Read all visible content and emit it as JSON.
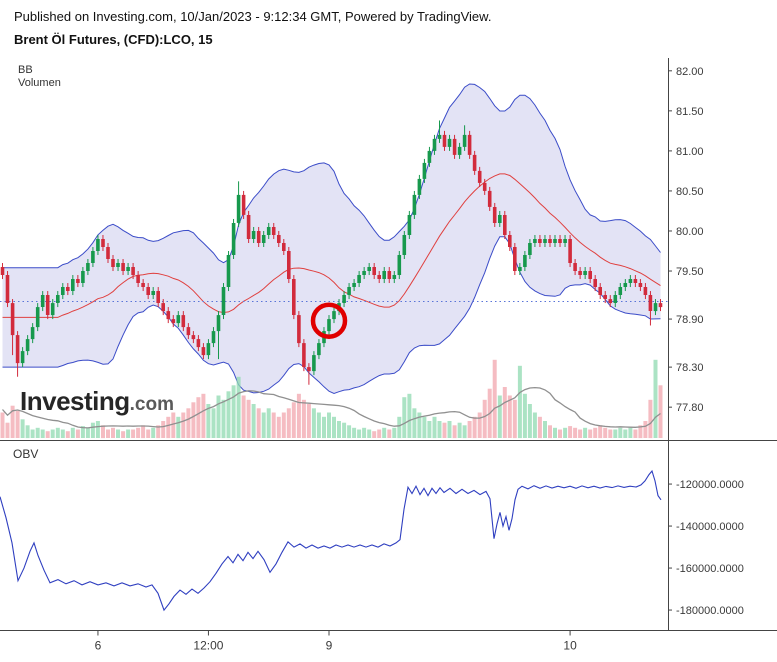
{
  "header": {
    "published_line": "Published on Investing.com, 10/Jan/2023 - 9:12:34 GMT, Powered by TradingView.",
    "instrument_line": "Brent Öl Futures, (CFD):LCO, 15"
  },
  "main_panel": {
    "bb_label": "BB",
    "volume_label": "Volumen"
  },
  "obv_panel": {
    "label": "OBV"
  },
  "logo": {
    "text_main": "Investing",
    "text_suffix": ".com"
  },
  "chart_data": [
    {
      "type": "candlestick",
      "title": "Brent Öl Futures, (CFD):LCO, 15",
      "interval": "15",
      "indicators": [
        "BB",
        "Volumen"
      ],
      "ylim": [
        77.39,
        82.16
      ],
      "y_axis": {
        "labels": [
          "82.00",
          "81.50",
          "81.00",
          "80.50",
          "80.00",
          "79.50",
          "78.90",
          "78.30",
          "77.80"
        ],
        "values": [
          82.0,
          81.5,
          81.0,
          80.5,
          80.0,
          79.5,
          78.9,
          78.3,
          77.8
        ]
      },
      "x_axis_labels": [
        {
          "label": "6",
          "index": 19
        },
        {
          "label": "12:00",
          "index": 41
        },
        {
          "label": "9",
          "index": 65
        },
        {
          "label": "10",
          "index": 113
        }
      ],
      "first_open": 79.55,
      "closes": [
        79.45,
        79.1,
        78.7,
        78.35,
        78.5,
        78.65,
        78.8,
        79.05,
        79.2,
        78.95,
        79.1,
        79.2,
        79.3,
        79.25,
        79.4,
        79.35,
        79.5,
        79.6,
        79.75,
        79.9,
        79.8,
        79.65,
        79.55,
        79.6,
        79.5,
        79.55,
        79.45,
        79.35,
        79.3,
        79.2,
        79.25,
        79.1,
        79.0,
        78.9,
        78.85,
        78.95,
        78.8,
        78.7,
        78.65,
        78.55,
        78.45,
        78.6,
        78.75,
        78.95,
        79.3,
        79.7,
        80.1,
        80.45,
        80.2,
        79.9,
        80.0,
        79.85,
        79.95,
        80.05,
        79.95,
        79.85,
        79.75,
        79.4,
        78.95,
        78.6,
        78.3,
        78.25,
        78.45,
        78.6,
        78.75,
        78.9,
        79.0,
        79.1,
        79.2,
        79.3,
        79.35,
        79.45,
        79.5,
        79.55,
        79.45,
        79.4,
        79.5,
        79.4,
        79.45,
        79.7,
        79.95,
        80.2,
        80.45,
        80.65,
        80.85,
        81.0,
        81.15,
        81.2,
        81.05,
        81.15,
        80.95,
        81.05,
        81.2,
        80.95,
        80.75,
        80.6,
        80.5,
        80.3,
        80.1,
        80.2,
        79.95,
        79.8,
        79.5,
        79.55,
        79.7,
        79.85,
        79.9,
        79.85,
        79.9,
        79.85,
        79.9,
        79.85,
        79.9,
        79.6,
        79.5,
        79.45,
        79.5,
        79.4,
        79.3,
        79.2,
        79.15,
        79.1,
        79.2,
        79.3,
        79.35,
        79.4,
        79.35,
        79.3,
        79.2,
        79.0,
        79.1,
        79.05
      ],
      "volumes": [
        0.3,
        0.18,
        0.38,
        0.32,
        0.22,
        0.15,
        0.1,
        0.12,
        0.1,
        0.08,
        0.1,
        0.12,
        0.1,
        0.08,
        0.12,
        0.1,
        0.14,
        0.12,
        0.18,
        0.2,
        0.15,
        0.1,
        0.12,
        0.1,
        0.08,
        0.1,
        0.1,
        0.12,
        0.15,
        0.1,
        0.12,
        0.15,
        0.2,
        0.25,
        0.3,
        0.25,
        0.3,
        0.35,
        0.42,
        0.48,
        0.52,
        0.4,
        0.35,
        0.5,
        0.45,
        0.55,
        0.62,
        0.72,
        0.5,
        0.45,
        0.4,
        0.35,
        0.3,
        0.35,
        0.3,
        0.25,
        0.3,
        0.35,
        0.42,
        0.52,
        0.45,
        0.4,
        0.35,
        0.3,
        0.25,
        0.3,
        0.25,
        0.2,
        0.18,
        0.15,
        0.12,
        0.1,
        0.12,
        0.1,
        0.08,
        0.1,
        0.12,
        0.1,
        0.12,
        0.25,
        0.48,
        0.52,
        0.35,
        0.3,
        0.25,
        0.2,
        0.25,
        0.2,
        0.18,
        0.2,
        0.15,
        0.18,
        0.15,
        0.2,
        0.25,
        0.3,
        0.45,
        0.58,
        0.92,
        0.5,
        0.6,
        0.5,
        0.45,
        0.85,
        0.52,
        0.4,
        0.3,
        0.25,
        0.2,
        0.15,
        0.12,
        0.1,
        0.12,
        0.14,
        0.12,
        0.1,
        0.12,
        0.1,
        0.12,
        0.15,
        0.12,
        0.1,
        0.1,
        0.12,
        0.1,
        0.12,
        0.1,
        0.15,
        0.2,
        0.45,
        0.92,
        0.62
      ],
      "extremes": {
        "2": {
          "low": 78.45
        },
        "3": {
          "low": 78.18
        },
        "43": {
          "low": 78.4
        },
        "47": {
          "high": 80.62
        },
        "61": {
          "low": 78.08
        },
        "87": {
          "high": 81.38
        },
        "92": {
          "high": 81.32
        },
        "129": {
          "low": 78.82
        }
      },
      "bollinger": {
        "period": 20,
        "mult": 2
      },
      "last_price_line": 79.12,
      "annotation_circle": {
        "index": 65,
        "price": 78.88
      },
      "colors": {
        "candle_up": "#17994d",
        "candle_down": "#d22b3c",
        "bb_line": "#3b4cc8",
        "bb_mid": "#e0403f",
        "bb_fill": "#8f8fd9",
        "vol_up": "#8fd9b0",
        "vol_down": "#f2a6ad",
        "vol_ma": "#909090",
        "dotted": "#5a74d8",
        "circle": "#e00000"
      }
    },
    {
      "type": "line",
      "name": "OBV",
      "color": "#2f3fc0",
      "ylim": [
        -189500,
        -101400
      ],
      "y_axis": {
        "labels": [
          "-120000.0000",
          "-140000.0000",
          "-160000.0000",
          "-180000.0000"
        ],
        "values": [
          -120000,
          -140000,
          -160000,
          -180000
        ]
      },
      "points": [
        [
          0,
          -126000
        ],
        [
          6,
          -136000
        ],
        [
          12,
          -148000
        ],
        [
          18,
          -166000
        ],
        [
          24,
          -160000
        ],
        [
          30,
          -152000
        ],
        [
          34,
          -148000
        ],
        [
          38,
          -154000
        ],
        [
          44,
          -161000
        ],
        [
          50,
          -167000
        ],
        [
          58,
          -165500
        ],
        [
          66,
          -167500
        ],
        [
          74,
          -166000
        ],
        [
          82,
          -168000
        ],
        [
          90,
          -166500
        ],
        [
          98,
          -168000
        ],
        [
          106,
          -167000
        ],
        [
          114,
          -168500
        ],
        [
          122,
          -167000
        ],
        [
          130,
          -168500
        ],
        [
          138,
          -167500
        ],
        [
          146,
          -169000
        ],
        [
          152,
          -168000
        ],
        [
          158,
          -172000
        ],
        [
          164,
          -180000
        ],
        [
          169,
          -177000
        ],
        [
          174,
          -173500
        ],
        [
          180,
          -170500
        ],
        [
          186,
          -172500
        ],
        [
          192,
          -170000
        ],
        [
          198,
          -172000
        ],
        [
          204,
          -169500
        ],
        [
          210,
          -166500
        ],
        [
          216,
          -162500
        ],
        [
          222,
          -158000
        ],
        [
          228,
          -154500
        ],
        [
          233,
          -157500
        ],
        [
          238,
          -153500
        ],
        [
          243,
          -156500
        ],
        [
          248,
          -152500
        ],
        [
          253,
          -155500
        ],
        [
          258,
          -152000
        ],
        [
          264,
          -156000
        ],
        [
          270,
          -162000
        ],
        [
          276,
          -158000
        ],
        [
          282,
          -152500
        ],
        [
          288,
          -147500
        ],
        [
          294,
          -150000
        ],
        [
          300,
          -148500
        ],
        [
          306,
          -150500
        ],
        [
          312,
          -149000
        ],
        [
          318,
          -150500
        ],
        [
          324,
          -149500
        ],
        [
          330,
          -150500
        ],
        [
          336,
          -149000
        ],
        [
          342,
          -150000
        ],
        [
          348,
          -149000
        ],
        [
          354,
          -150000
        ],
        [
          360,
          -149000
        ],
        [
          366,
          -150000
        ],
        [
          372,
          -149000
        ],
        [
          378,
          -150000
        ],
        [
          384,
          -148500
        ],
        [
          390,
          -149500
        ],
        [
          396,
          -148000
        ],
        [
          400,
          -146500
        ],
        [
          404,
          -132000
        ],
        [
          408,
          -121500
        ],
        [
          412,
          -124500
        ],
        [
          416,
          -121000
        ],
        [
          420,
          -125000
        ],
        [
          424,
          -122000
        ],
        [
          428,
          -125500
        ],
        [
          432,
          -122000
        ],
        [
          436,
          -124500
        ],
        [
          440,
          -121800
        ],
        [
          444,
          -124000
        ],
        [
          450,
          -122000
        ],
        [
          456,
          -124500
        ],
        [
          462,
          -122500
        ],
        [
          468,
          -124500
        ],
        [
          474,
          -123000
        ],
        [
          480,
          -125000
        ],
        [
          486,
          -123500
        ],
        [
          490,
          -127000
        ],
        [
          494,
          -146000
        ],
        [
          497,
          -139000
        ],
        [
          500,
          -133500
        ],
        [
          503,
          -140000
        ],
        [
          506,
          -135500
        ],
        [
          509,
          -142000
        ],
        [
          512,
          -136500
        ],
        [
          515,
          -127500
        ],
        [
          518,
          -122500
        ],
        [
          522,
          -121000
        ],
        [
          528,
          -122300
        ],
        [
          534,
          -120800
        ],
        [
          540,
          -122000
        ],
        [
          546,
          -120900
        ],
        [
          552,
          -121900
        ],
        [
          558,
          -121000
        ],
        [
          564,
          -121800
        ],
        [
          570,
          -121000
        ],
        [
          576,
          -122000
        ],
        [
          582,
          -120900
        ],
        [
          588,
          -121800
        ],
        [
          594,
          -121000
        ],
        [
          600,
          -121900
        ],
        [
          606,
          -121100
        ],
        [
          612,
          -121700
        ],
        [
          618,
          -120900
        ],
        [
          624,
          -121600
        ],
        [
          630,
          -121000
        ],
        [
          636,
          -121400
        ],
        [
          641,
          -120400
        ],
        [
          645,
          -118500
        ],
        [
          649,
          -115500
        ],
        [
          652,
          -113800
        ],
        [
          655,
          -118500
        ],
        [
          658,
          -125500
        ],
        [
          661,
          -127500
        ]
      ]
    }
  ]
}
